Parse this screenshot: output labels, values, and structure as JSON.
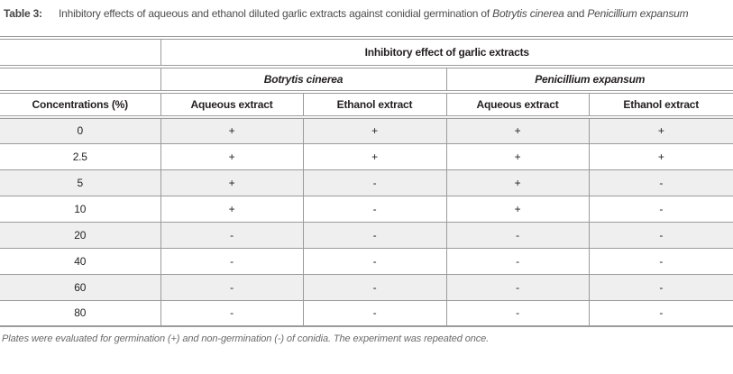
{
  "title": {
    "label": "Table 3:",
    "part1": "Inhibitory effects of aqueous and ethanol diluted garlic extracts against conidial germination of ",
    "species1": "Botrytis cinerea",
    "part2": " and ",
    "species2": "Penicillium expansum"
  },
  "table": {
    "group_header": "Inhibitory effect of garlic extracts",
    "species": [
      "Botrytis cinerea",
      "Penicillium expansum"
    ],
    "columns": [
      "Concentrations (%)",
      "Aqueous extract",
      "Ethanol extract",
      "Aqueous extract",
      "Ethanol extract"
    ],
    "rows": [
      {
        "concentration": "0",
        "values": [
          "+",
          "+",
          "+",
          "+"
        ]
      },
      {
        "concentration": "2.5",
        "values": [
          "+",
          "+",
          "+",
          "+"
        ]
      },
      {
        "concentration": "5",
        "values": [
          "+",
          "-",
          "+",
          "-"
        ]
      },
      {
        "concentration": "10",
        "values": [
          "+",
          "-",
          "+",
          "-"
        ]
      },
      {
        "concentration": "20",
        "values": [
          "-",
          "-",
          "-",
          "-"
        ]
      },
      {
        "concentration": "40",
        "values": [
          "-",
          "-",
          "-",
          "-"
        ]
      },
      {
        "concentration": "60",
        "values": [
          "-",
          "-",
          "-",
          "-"
        ]
      },
      {
        "concentration": "80",
        "values": [
          "-",
          "-",
          "-",
          "-"
        ]
      }
    ]
  },
  "footnote": "Plates were evaluated for germination (+) and non-germination (-) of conidia. The experiment was repeated once.",
  "colors": {
    "border": "#9b9b9b",
    "row_shade": "#efefef",
    "text_dark": "#231f20",
    "text_gray": "#6a6a6d"
  }
}
